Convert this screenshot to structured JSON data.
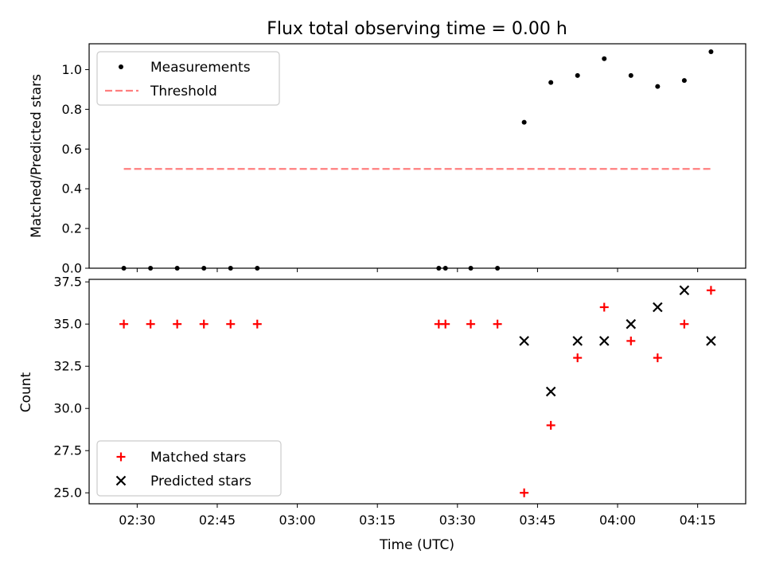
{
  "chart_data": [
    {
      "type": "scatter",
      "title": "Flux total observing time = 0.00 h",
      "xlabel": "",
      "ylabel": "Matched/Predicted stars",
      "ylim": [
        0.0,
        1.13
      ],
      "yticks": [
        "0.0",
        "0.2",
        "0.4",
        "0.6",
        "0.8",
        "1.0"
      ],
      "ytick_values": [
        0.0,
        0.2,
        0.4,
        0.6,
        0.8,
        1.0
      ],
      "grid": false,
      "legend": "upper-left",
      "series": [
        {
          "name": "Measurements",
          "marker": "dot",
          "color": "#000000",
          "x": [
            "02:27:30",
            "02:32:30",
            "02:37:30",
            "02:42:30",
            "02:47:30",
            "02:52:30",
            "03:26:30",
            "03:27:45",
            "03:32:30",
            "03:37:30",
            "03:42:30",
            "03:47:30",
            "03:52:30",
            "03:57:30",
            "04:02:30",
            "04:07:30",
            "04:12:30",
            "04:17:30"
          ],
          "y": [
            0.0,
            0.0,
            0.0,
            0.0,
            0.0,
            0.0,
            0.0,
            0.0,
            0.0,
            0.0,
            0.735,
            0.935,
            0.97,
            1.055,
            0.97,
            0.915,
            0.945,
            1.09
          ]
        },
        {
          "name": "Threshold",
          "marker": "dashed-line",
          "color": "#ff7f7f",
          "x": [
            "02:27:30",
            "04:17:30"
          ],
          "y": [
            0.5,
            0.5
          ]
        }
      ]
    },
    {
      "type": "scatter",
      "title": "",
      "xlabel": "Time (UTC)",
      "ylabel": "Count",
      "ylim": [
        24.35,
        37.65
      ],
      "yticks": [
        "25.0",
        "27.5",
        "30.0",
        "32.5",
        "35.0",
        "37.5"
      ],
      "ytick_values": [
        25.0,
        27.5,
        30.0,
        32.5,
        35.0,
        37.5
      ],
      "xlim": [
        "02:21:00",
        "04:24:00"
      ],
      "xticks": [
        "02:30",
        "02:45",
        "03:00",
        "03:15",
        "03:30",
        "03:45",
        "04:00",
        "04:15"
      ],
      "grid": false,
      "legend": "lower-left",
      "series": [
        {
          "name": "Matched stars",
          "marker": "plus",
          "color": "#ff0000",
          "x": [
            "02:27:30",
            "02:32:30",
            "02:37:30",
            "02:42:30",
            "02:47:30",
            "02:52:30",
            "03:26:30",
            "03:27:45",
            "03:32:30",
            "03:37:30",
            "03:42:30",
            "03:47:30",
            "03:52:30",
            "03:57:30",
            "04:02:30",
            "04:07:30",
            "04:12:30",
            "04:17:30"
          ],
          "y": [
            35,
            35,
            35,
            35,
            35,
            35,
            35,
            35,
            35,
            35,
            25,
            29,
            33,
            36,
            34,
            33,
            35,
            37
          ]
        },
        {
          "name": "Predicted stars",
          "marker": "x",
          "color": "#000000",
          "x": [
            "03:42:30",
            "03:47:30",
            "03:52:30",
            "03:57:30",
            "04:02:30",
            "04:07:30",
            "04:12:30",
            "04:17:30"
          ],
          "y": [
            34,
            31,
            34,
            34,
            35,
            36,
            37,
            34
          ]
        }
      ]
    }
  ]
}
